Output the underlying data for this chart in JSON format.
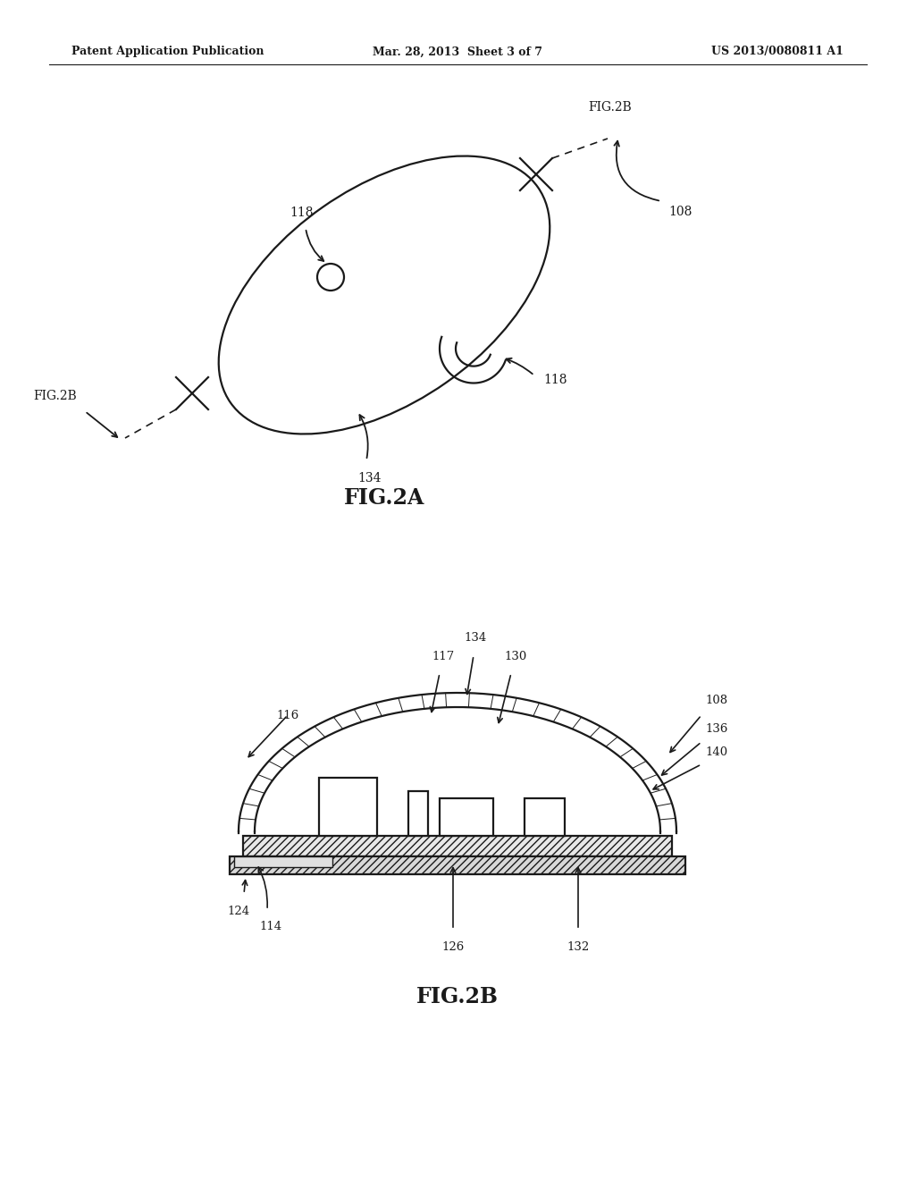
{
  "bg_color": "#ffffff",
  "line_color": "#1a1a1a",
  "header_left": "Patent Application Publication",
  "header_center": "Mar. 28, 2013  Sheet 3 of 7",
  "header_right": "US 2013/0080811 A1",
  "fig2a_label": "FIG.2A",
  "fig2b_label": "FIG.2B"
}
